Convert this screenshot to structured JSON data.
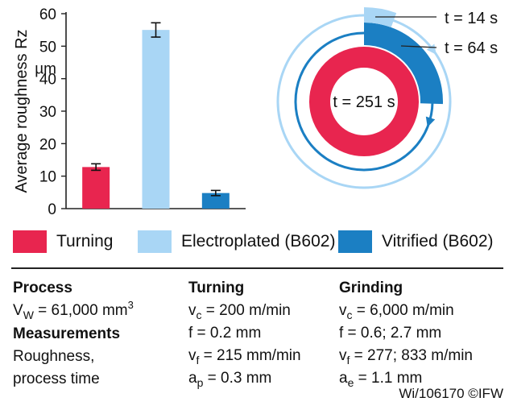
{
  "chart_data": [
    {
      "type": "bar",
      "ylabel": "Average roughness Rz",
      "yunit": "µm",
      "ylim": [
        0,
        60
      ],
      "yticks": [
        0,
        10,
        20,
        30,
        40,
        50,
        60
      ],
      "categories": [
        "Turning",
        "Electroplated (B602)",
        "Vitrified (B602)"
      ],
      "values": [
        12.8,
        55.0,
        4.8
      ],
      "errors": [
        1.0,
        2.2,
        0.8
      ],
      "colors": [
        "#e8254f",
        "#a9d6f5",
        "#1b7fc3"
      ],
      "grid": false
    },
    {
      "type": "pie",
      "labels": [
        "t = 14 s",
        "t = 64 s",
        "t = 251 s"
      ],
      "values": [
        14,
        64,
        251
      ],
      "colors": [
        "#a9d6f5",
        "#1b7fc3",
        "#e8254f"
      ]
    }
  ],
  "legend": [
    {
      "label": "Turning",
      "color": "#e8254f"
    },
    {
      "label": "Electroplated (B602)",
      "color": "#a9d6f5"
    },
    {
      "label": "Vitrified (B602)",
      "color": "#1b7fc3"
    }
  ],
  "info": {
    "col1": {
      "process_head": "Process",
      "vw_symbol": "V",
      "vw_sub": "W",
      "vw_value": " = 61,000 mm",
      "vw_exp": "3",
      "measure_head": "Measurements",
      "measure_line1": "Roughness,",
      "measure_line2": "process time"
    },
    "col2": {
      "head": "Turning",
      "rows": [
        {
          "sym": "v",
          "sub": "c",
          "val": " = 200 m/min"
        },
        {
          "sym": "f",
          "sub": "",
          "val": "  = 0.2 mm"
        },
        {
          "sym": "v",
          "sub": "f",
          "val": " = 215 mm/min"
        },
        {
          "sym": "a",
          "sub": "p",
          "val": " = 0.3 mm"
        }
      ]
    },
    "col3": {
      "head": "Grinding",
      "rows": [
        {
          "sym": "v",
          "sub": "c",
          "val": "  = 6,000 m/min"
        },
        {
          "sym": "f",
          "sub": "",
          "val": "   = 0.6; 2.7 mm"
        },
        {
          "sym": "v",
          "sub": "f",
          "val": "  = 277; 833 m/min"
        },
        {
          "sym": "a",
          "sub": "e",
          "val": "  = 1.1 mm"
        }
      ]
    }
  },
  "credit": "Wi/106170 ©IFW"
}
